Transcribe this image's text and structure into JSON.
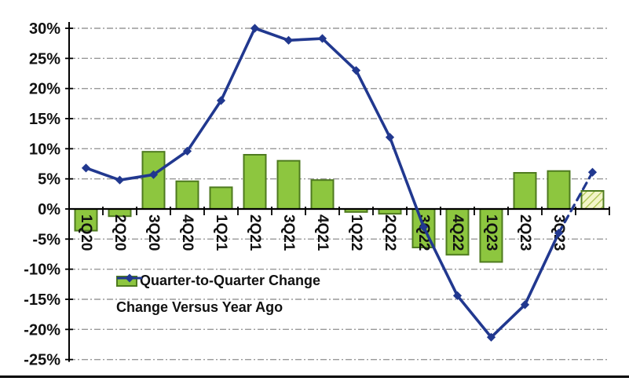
{
  "chart_data": {
    "type": "combo-bar-line",
    "title": "",
    "categories": [
      "1Q20",
      "2Q20",
      "3Q20",
      "4Q20",
      "1Q21",
      "2Q21",
      "3Q21",
      "4Q21",
      "1Q22",
      "2Q22",
      "3Q22",
      "4Q22",
      "1Q23",
      "2Q23",
      "3Q23",
      ""
    ],
    "series": [
      {
        "name": "Quarter-to-Quarter Change",
        "type": "bar",
        "values": [
          -3.6,
          -1.2,
          9.5,
          4.6,
          3.6,
          9.0,
          8.0,
          4.8,
          -0.5,
          -0.8,
          -6.4,
          -7.6,
          -8.8,
          6.0,
          6.3,
          3.0
        ],
        "estimate_note": "last bar drawn hatched (estimate, no axis label)"
      },
      {
        "name": "Change Versus Year Ago",
        "type": "line",
        "values": [
          6.8,
          4.8,
          5.7,
          9.6,
          18.0,
          30.0,
          28.0,
          28.3,
          23.0,
          11.9,
          -3.0,
          -14.4,
          -21.3,
          -15.9,
          -4.0,
          6.1
        ],
        "estimate_note": "last segment drawn dashed (estimate)"
      }
    ],
    "ylim": [
      -25,
      30
    ],
    "ytick_step": 5,
    "ytick_labels": [
      "30%",
      "25%",
      "20%",
      "15%",
      "10%",
      "5%",
      "0%",
      "-5%",
      "-10%",
      "-15%",
      "-20%",
      "-25%"
    ],
    "xlabel": "",
    "ylabel": "",
    "grid": "horizontal-dashed",
    "legend_position": "inside-lower-left",
    "estimate_index": 15
  },
  "colors": {
    "bar_fill": "#8dc63f",
    "bar_border": "#4e7a1f",
    "estimate_fill": "#f3f5c9",
    "estimate_hatch": "#a9c24a",
    "line": "#21388f",
    "grid": "#999999",
    "axis": "#000000",
    "text": "#111111",
    "background": "#ffffff",
    "bottom_rule": "#000000"
  }
}
